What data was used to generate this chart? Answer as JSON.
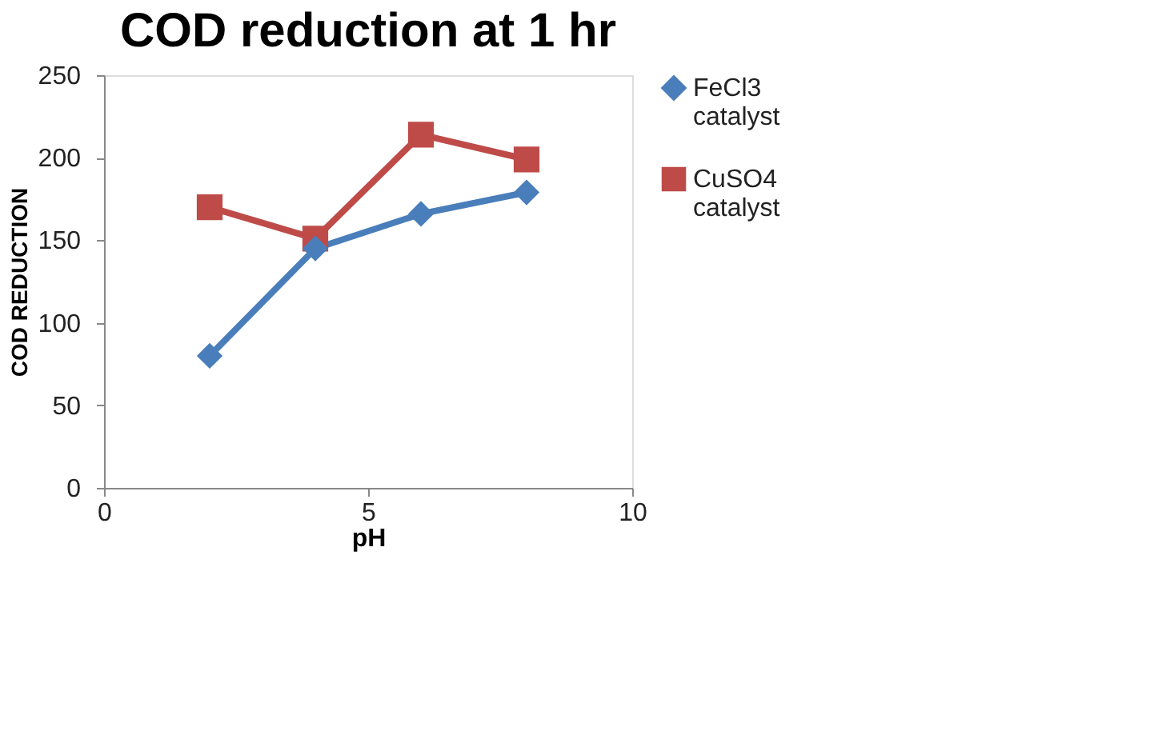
{
  "chart_data": {
    "type": "line",
    "title": "COD reduction at 1 hr",
    "xlabel": "pH",
    "ylabel": "COD REDUCTION",
    "x": [
      2,
      4,
      6,
      8
    ],
    "xlim": [
      0,
      10
    ],
    "xticks": [
      0,
      5,
      10
    ],
    "ylim": [
      0,
      250
    ],
    "yticks": [
      0,
      50,
      100,
      150,
      200,
      250
    ],
    "grid": false,
    "legend": "right",
    "series": [
      {
        "name": "FeCl3 catalyst",
        "color": "#4a7ebb",
        "marker": "diamond",
        "values": [
          80,
          145,
          166,
          179
        ]
      },
      {
        "name": "CuSO4 catalyst",
        "color": "#be4b48",
        "marker": "square",
        "values": [
          170,
          151,
          214,
          199
        ]
      }
    ]
  }
}
